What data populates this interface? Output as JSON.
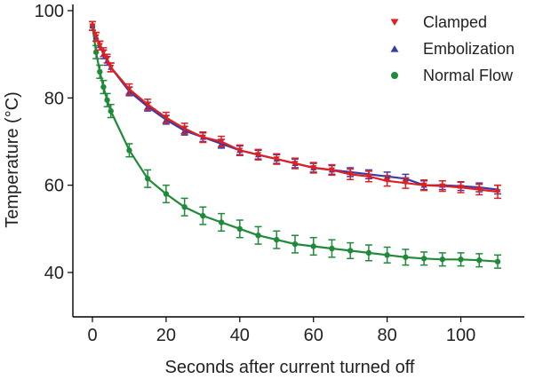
{
  "chart_data": {
    "type": "line",
    "title": "",
    "xlabel": "Seconds after current turned off",
    "ylabel": "Temperature (°C)",
    "xlim": [
      -5,
      113
    ],
    "ylim": [
      30,
      100
    ],
    "xticks": [
      0,
      20,
      40,
      60,
      80,
      100
    ],
    "yticks": [
      40,
      60,
      80,
      100
    ],
    "x_tick_labels": [
      "0",
      "20",
      "40",
      "60",
      "80",
      "100"
    ],
    "y_tick_labels": [
      "40",
      "60",
      "80",
      "100"
    ],
    "grid": false,
    "legend_position": "top-right",
    "series": [
      {
        "name": "Clamped",
        "color": "#e02020",
        "marker": "triangle-down",
        "x": [
          0,
          1,
          2,
          3,
          4,
          5,
          10,
          15,
          20,
          25,
          30,
          35,
          40,
          45,
          50,
          55,
          60,
          65,
          70,
          75,
          80,
          85,
          90,
          95,
          100,
          105,
          110
        ],
        "y": [
          96.5,
          94.0,
          92.0,
          90.5,
          89.0,
          87.0,
          82.0,
          78.5,
          75.5,
          73.0,
          71.0,
          70.0,
          68.0,
          67.0,
          66.0,
          65.0,
          64.0,
          63.5,
          62.5,
          62.0,
          61.0,
          60.5,
          60.0,
          59.8,
          59.5,
          59.0,
          58.5
        ],
        "err": [
          1.0,
          1.0,
          1.0,
          1.0,
          1.0,
          1.0,
          1.2,
          1.2,
          1.2,
          1.2,
          1.2,
          1.2,
          1.2,
          1.2,
          1.2,
          1.2,
          1.2,
          1.2,
          1.2,
          1.2,
          1.2,
          1.2,
          1.2,
          1.2,
          1.2,
          1.2,
          1.5
        ]
      },
      {
        "name": "Embolization",
        "color": "#3a3aa8",
        "marker": "triangle-up",
        "x": [
          0,
          1,
          2,
          3,
          4,
          5,
          10,
          15,
          20,
          25,
          30,
          35,
          40,
          45,
          50,
          55,
          60,
          65,
          70,
          75,
          80,
          85,
          90,
          95,
          100,
          105,
          110
        ],
        "y": [
          96.5,
          94.0,
          92.0,
          90.0,
          88.5,
          87.0,
          81.5,
          78.0,
          75.0,
          72.5,
          71.0,
          69.5,
          68.0,
          67.0,
          66.0,
          65.0,
          64.0,
          63.5,
          63.0,
          62.5,
          62.0,
          61.5,
          60.0,
          60.0,
          59.8,
          59.5,
          59.0
        ],
        "err": [
          1.0,
          1.0,
          1.0,
          1.0,
          1.0,
          1.0,
          1.0,
          1.0,
          1.0,
          1.0,
          1.0,
          1.0,
          1.0,
          1.0,
          1.0,
          1.0,
          1.0,
          1.0,
          1.0,
          1.0,
          1.0,
          1.0,
          1.0,
          1.0,
          1.0,
          1.0,
          1.0
        ]
      },
      {
        "name": "Normal Flow",
        "color": "#1f8a3a",
        "marker": "circle",
        "x": [
          0,
          1,
          2,
          3,
          4,
          5,
          10,
          15,
          20,
          25,
          30,
          35,
          40,
          45,
          50,
          55,
          60,
          65,
          70,
          75,
          80,
          85,
          90,
          95,
          100,
          105,
          110
        ],
        "y": [
          96.5,
          90.5,
          86.0,
          82.5,
          79.5,
          77.0,
          68.0,
          61.5,
          58.0,
          55.0,
          53.0,
          51.5,
          50.0,
          48.5,
          47.5,
          46.5,
          46.0,
          45.5,
          45.0,
          44.5,
          44.0,
          43.5,
          43.2,
          43.0,
          43.0,
          42.8,
          42.5
        ],
        "err": [
          1.0,
          1.5,
          1.5,
          1.5,
          1.5,
          1.5,
          1.5,
          2.0,
          2.0,
          2.0,
          2.0,
          2.0,
          2.0,
          2.0,
          2.0,
          2.0,
          2.0,
          2.0,
          1.8,
          1.8,
          1.8,
          1.8,
          1.5,
          1.5,
          1.5,
          1.5,
          1.5
        ]
      }
    ]
  }
}
